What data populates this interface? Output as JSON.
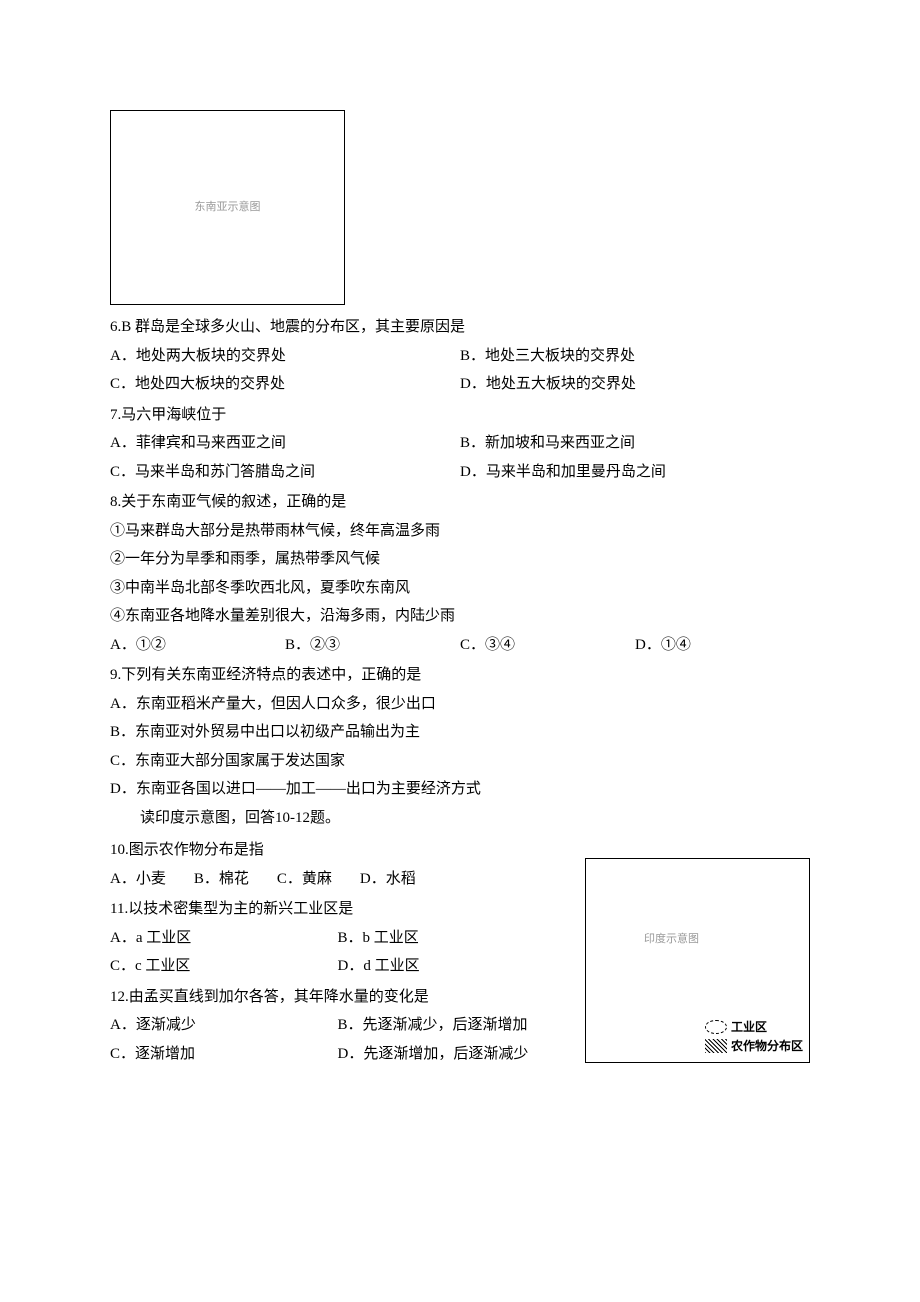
{
  "sea_map": {
    "alt": "东南亚示意图"
  },
  "q6": {
    "stem": "6.B 群岛是全球多火山、地震的分布区，其主要原因是",
    "A": "A．地处两大板块的交界处",
    "B": "B．地处三大板块的交界处",
    "C": "C．地处四大板块的交界处",
    "D": "D．地处五大板块的交界处"
  },
  "q7": {
    "stem": "7.马六甲海峡位于",
    "A": "A．菲律宾和马来西亚之间",
    "B": "B．新加坡和马来西亚之间",
    "C": "C．马来半岛和苏门答腊岛之间",
    "D": "D．马来半岛和加里曼丹岛之间"
  },
  "q8": {
    "stem": "8.关于东南亚气候的叙述，正确的是",
    "s1": "①马来群岛大部分是热带雨林气候，终年高温多雨",
    "s2": "②一年分为旱季和雨季，属热带季风气候",
    "s3": "③中南半岛北部冬季吹西北风，夏季吹东南风",
    "s4": "④东南亚各地降水量差别很大，沿海多雨，内陆少雨",
    "A": "A．①②",
    "B": "B．②③",
    "C": "C．③④",
    "D": "D．①④"
  },
  "q9": {
    "stem": "9.下列有关东南亚经济特点的表述中，正确的是",
    "A": "A．东南亚稻米产量大，但因人口众多，很少出口",
    "B": "B．东南亚对外贸易中出口以初级产品输出为主",
    "C": "C．东南亚大部分国家属于发达国家",
    "D": "D．东南亚各国以进口——加工——出口为主要经济方式"
  },
  "india_intro": "读印度示意图，回答10-12题。",
  "q10": {
    "stem": "10.图示农作物分布是指",
    "A": "A．小麦",
    "B": "B．棉花",
    "C": "C．黄麻",
    "D": "D．水稻"
  },
  "q11": {
    "stem": "11.以技术密集型为主的新兴工业区是",
    "A": "A．a 工业区",
    "B": "B．b 工业区",
    "C": "C．c 工业区",
    "D": "D．d 工业区"
  },
  "q12": {
    "stem": "12.由孟买直线到加尔各答，其年降水量的变化是",
    "A": "A．逐渐减少",
    "B": "B．先逐渐减少，后逐渐增加",
    "C": "C．逐渐增加",
    "D": "D．先逐渐增加，后逐渐减少"
  },
  "india_map": {
    "legend_industry": "工业区",
    "legend_crop": "农作物分布区",
    "alt": "印度示意图"
  }
}
